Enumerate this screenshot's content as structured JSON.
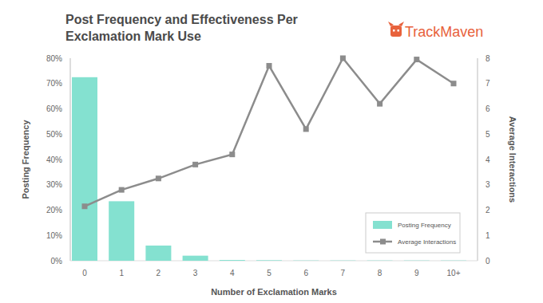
{
  "chart_data": {
    "type": "bar",
    "title": "Post Frequency and Effectiveness Per Exclamation Mark Use",
    "annotations": [
      "TrackMaven"
    ],
    "x_label": "Number of Exclamation Marks",
    "y_label": "Posting Frequency",
    "y2_label": "Average Interactions",
    "categories": [
      "0",
      "1",
      "2",
      "3",
      "4",
      "5",
      "6",
      "7",
      "8",
      "9",
      "10+"
    ],
    "series": [
      {
        "name": "Posting Frequency",
        "type": "bar",
        "color": "#84e1d0",
        "values": [
          72.5,
          23.5,
          6,
          2,
          0.3,
          0.2,
          0.1,
          0.1,
          0.1,
          0.1,
          0.1
        ]
      },
      {
        "name": "Average Interactions",
        "type": "line",
        "axis": "y2",
        "color": "#8c8c8c",
        "marker": "square",
        "values": [
          2.15,
          2.8,
          3.25,
          3.8,
          4.2,
          7.7,
          5.2,
          8.0,
          6.2,
          7.95,
          7.0
        ]
      }
    ],
    "ylim": [
      0,
      80
    ],
    "yticks": [
      {
        "value": 0,
        "label": "0%"
      },
      {
        "value": 10,
        "label": "10%"
      },
      {
        "value": 20,
        "label": "20%"
      },
      {
        "value": 30,
        "label": "30%"
      },
      {
        "value": 40,
        "label": "40%"
      },
      {
        "value": 50,
        "label": "50%"
      },
      {
        "value": 60,
        "label": "60%"
      },
      {
        "value": 70,
        "label": "70%"
      },
      {
        "value": 80,
        "label": "80%"
      }
    ],
    "y2lim": [
      0,
      8
    ],
    "y2ticks": [
      0,
      1,
      2,
      3,
      4,
      5,
      6,
      7,
      8
    ],
    "grid": false,
    "legend": "lower right"
  }
}
